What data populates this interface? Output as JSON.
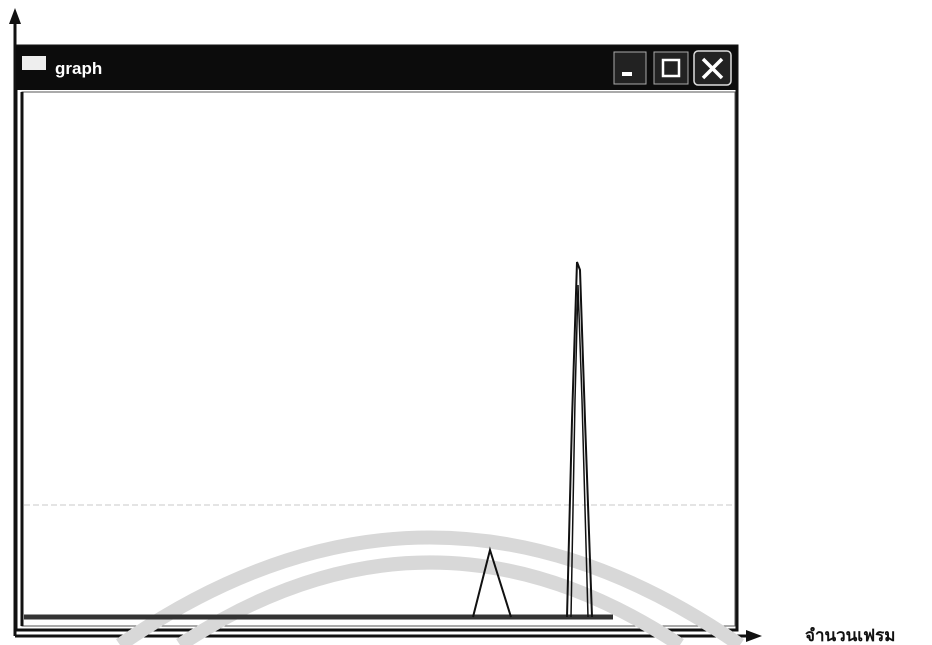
{
  "window": {
    "title": "graph"
  },
  "axis_label": "จำนวนเฟรม"
}
